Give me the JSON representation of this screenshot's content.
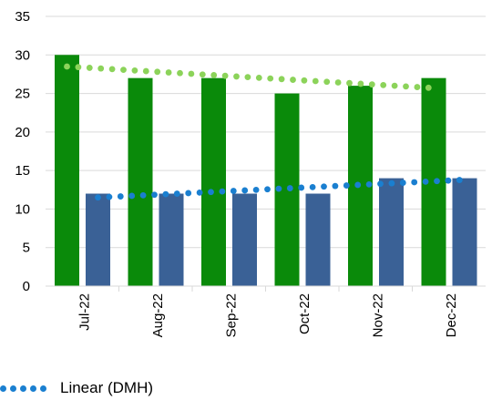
{
  "chart_data": {
    "type": "bar",
    "categories": [
      "Jul-22",
      "Aug-22",
      "Sep-22",
      "Oct-22",
      "Nov-22",
      "Dec-22"
    ],
    "series": [
      {
        "values": [
          30,
          27,
          27,
          25,
          26,
          27
        ],
        "color": "#0a8a0a"
      },
      {
        "name": "DMH",
        "values": [
          12,
          12,
          12,
          12,
          14,
          14
        ],
        "color": "#3a6196"
      }
    ],
    "trendlines": [
      {
        "type": "linear",
        "of_series": 0,
        "start": 28.5,
        "end": 25.7,
        "color": "#8cd35a",
        "style": "dotted"
      },
      {
        "type": "linear",
        "of_series": 1,
        "label": "Linear (DMH)",
        "start": 11.5,
        "end": 13.8,
        "color": "#1a7fd0",
        "style": "dotted"
      }
    ],
    "ylim": [
      0,
      35
    ],
    "yticks": [
      "0",
      "5",
      "10",
      "15",
      "20",
      "25",
      "30",
      "35"
    ],
    "grid": true,
    "legend_position": "bottom"
  },
  "legend": {
    "label": "Linear (DMH)",
    "color": "#1a7fd0"
  }
}
